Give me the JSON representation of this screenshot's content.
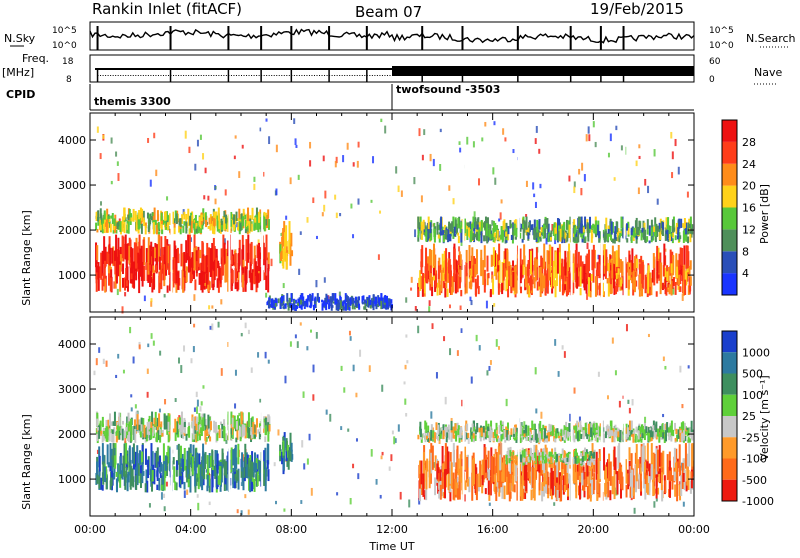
{
  "header": {
    "station": "Rankin Inlet (fitACF)",
    "beam": "Beam 07",
    "date": "19/Feb/2015"
  },
  "top_panels": {
    "nsky_label": "N.Sky",
    "nsky_ticks": [
      "10^5",
      "10^0"
    ],
    "nsearch_label": "N.Search",
    "nsearch_ticks": [
      "10^5",
      "10^0"
    ],
    "freq_label": "Freq.",
    "freq_unit": "[MHz]",
    "freq_ticks": [
      "18",
      "8"
    ],
    "nave_label": "Nave",
    "nave_ticks": [
      "60",
      "0"
    ],
    "cpid_label": "CPID",
    "cpid_segments": [
      {
        "name": "themis 3300",
        "start_hour": 0
      },
      {
        "name": "twofsound -3503",
        "start_hour": 12.0
      }
    ]
  },
  "chart_data": [
    {
      "type": "heatmap",
      "name": "power",
      "ylabel": "Slant Range [km]",
      "y_ticks": [
        1000,
        2000,
        3000,
        4000
      ],
      "ylim": [
        180,
        4600
      ],
      "xlim": [
        0,
        24
      ],
      "colorbar": {
        "label": "Power [dB]",
        "ticks": [
          "4",
          "8",
          "12",
          "16",
          "20",
          "24",
          "28"
        ],
        "colors": [
          "#1a35ff",
          "#2a4fb8",
          "#4f8f5a",
          "#58c83a",
          "#ffd21a",
          "#ff8c1a",
          "#ff3d1a",
          "#ee1111"
        ]
      },
      "regions": [
        {
          "t0": 0.2,
          "t1": 7.1,
          "r0": 600,
          "r1": 1900,
          "level": 7
        },
        {
          "t0": 0.2,
          "t1": 7.1,
          "r0": 1900,
          "r1": 2500,
          "level": 4
        },
        {
          "t0": 7.5,
          "t1": 8.0,
          "r0": 1100,
          "r1": 2200,
          "level": 5
        },
        {
          "t0": 13.0,
          "t1": 23.9,
          "r0": 500,
          "r1": 1700,
          "level": 6
        },
        {
          "t0": 13.0,
          "t1": 23.9,
          "r0": 1700,
          "r1": 2300,
          "level": 3
        },
        {
          "t0": 7.0,
          "t1": 12.0,
          "r0": 200,
          "r1": 600,
          "level": 1
        }
      ]
    },
    {
      "type": "heatmap",
      "name": "velocity",
      "ylabel": "Slant Range [km]",
      "xlabel": "Time UT",
      "x_ticks": [
        "00:00",
        "04:00",
        "08:00",
        "12:00",
        "16:00",
        "20:00",
        "00:00"
      ],
      "y_ticks": [
        1000,
        2000,
        3000,
        4000
      ],
      "ylim": [
        180,
        4600
      ],
      "xlim": [
        0,
        24
      ],
      "colorbar": {
        "label": "Velocity [m s⁻¹]",
        "ticks": [
          "1000",
          "500",
          "100",
          "25",
          "-25",
          "-100",
          "-500",
          "-1000"
        ],
        "colors": [
          "#1a3fcc",
          "#2d7aa0",
          "#3e8f5f",
          "#5fd03a",
          "#c8c8c8",
          "#ff9a2a",
          "#ff6a1a",
          "#ee1a10"
        ]
      },
      "regions": [
        {
          "t0": 0.2,
          "t1": 7.1,
          "r0": 700,
          "r1": 1800,
          "level": 2
        },
        {
          "t0": 0.2,
          "t1": 7.1,
          "r0": 1800,
          "r1": 2500,
          "level": 4
        },
        {
          "t0": 7.5,
          "t1": 8.0,
          "r0": 1100,
          "r1": 2100,
          "level": 2
        },
        {
          "t0": 13.0,
          "t1": 23.9,
          "r0": 500,
          "r1": 1800,
          "level": 6
        },
        {
          "t0": 16.5,
          "t1": 20.0,
          "r0": 1300,
          "r1": 1700,
          "level": 4
        },
        {
          "t0": 13.0,
          "t1": 23.9,
          "r0": 1800,
          "r1": 2300,
          "level": 4
        }
      ]
    }
  ]
}
